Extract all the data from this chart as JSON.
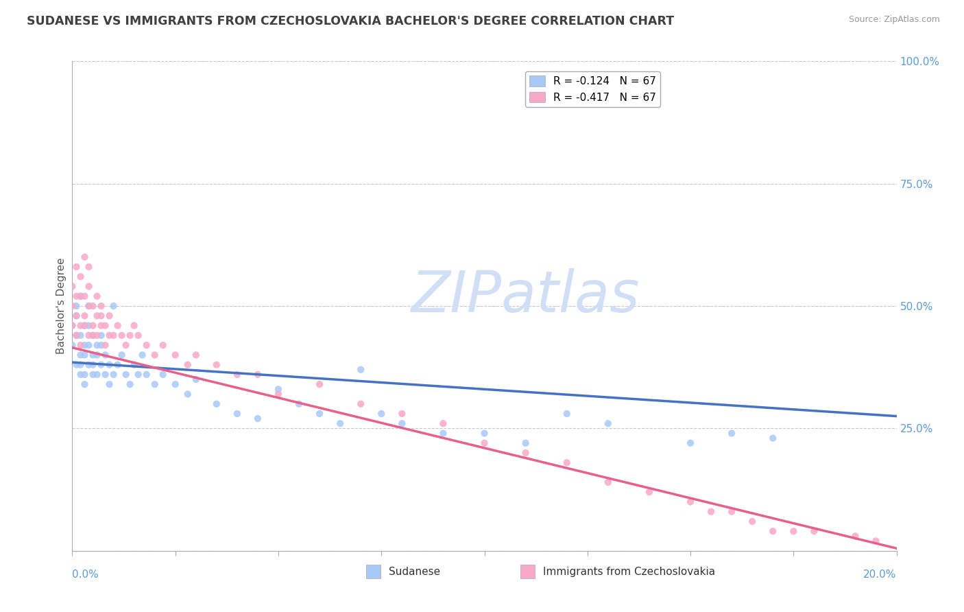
{
  "title": "SUDANESE VS IMMIGRANTS FROM CZECHOSLOVAKIA BACHELOR'S DEGREE CORRELATION CHART",
  "source_text": "Source: ZipAtlas.com",
  "ylabel": "Bachelor's Degree",
  "right_yticks": [
    0.0,
    0.25,
    0.5,
    0.75,
    1.0
  ],
  "right_yticklabels": [
    "",
    "25.0%",
    "50.0%",
    "75.0%",
    "100.0%"
  ],
  "bottom_legend": [
    {
      "label": "Sudanese",
      "color": "#a8c8f8"
    },
    {
      "label": "Immigrants from Czechoslovakia",
      "color": "#f8a8c8"
    }
  ],
  "legend_entries": [
    {
      "label": "R = -0.124   N = 67",
      "color": "#a8c8f8"
    },
    {
      "label": "R = -0.417   N = 67",
      "color": "#f8a8c8"
    }
  ],
  "series1_color": "#a8c8f8",
  "series2_color": "#f8a8c8",
  "line1_color": "#4472c4",
  "line2_color": "#e8608a",
  "watermark": "ZIPatlas",
  "watermark_color": "#d0dff5",
  "background_color": "#ffffff",
  "grid_color": "#c8c8c8",
  "title_color": "#404040",
  "axis_label_color": "#5b9bd5",
  "series1_scatter": {
    "x": [
      0.0,
      0.0,
      0.001,
      0.001,
      0.001,
      0.001,
      0.002,
      0.002,
      0.002,
      0.002,
      0.002,
      0.003,
      0.003,
      0.003,
      0.003,
      0.003,
      0.004,
      0.004,
      0.004,
      0.004,
      0.005,
      0.005,
      0.005,
      0.005,
      0.006,
      0.006,
      0.006,
      0.007,
      0.007,
      0.007,
      0.008,
      0.008,
      0.009,
      0.009,
      0.01,
      0.01,
      0.011,
      0.012,
      0.013,
      0.014,
      0.015,
      0.016,
      0.017,
      0.018,
      0.02,
      0.022,
      0.025,
      0.028,
      0.03,
      0.035,
      0.04,
      0.045,
      0.05,
      0.055,
      0.06,
      0.065,
      0.07,
      0.075,
      0.08,
      0.09,
      0.1,
      0.11,
      0.12,
      0.13,
      0.15,
      0.16,
      0.17
    ],
    "y": [
      0.42,
      0.46,
      0.44,
      0.48,
      0.38,
      0.5,
      0.4,
      0.44,
      0.38,
      0.36,
      0.52,
      0.42,
      0.46,
      0.36,
      0.4,
      0.34,
      0.38,
      0.42,
      0.46,
      0.5,
      0.4,
      0.36,
      0.44,
      0.38,
      0.42,
      0.36,
      0.4,
      0.38,
      0.42,
      0.44,
      0.36,
      0.4,
      0.38,
      0.34,
      0.5,
      0.36,
      0.38,
      0.4,
      0.36,
      0.34,
      0.38,
      0.36,
      0.4,
      0.36,
      0.34,
      0.36,
      0.34,
      0.32,
      0.35,
      0.3,
      0.28,
      0.27,
      0.33,
      0.3,
      0.28,
      0.26,
      0.37,
      0.28,
      0.26,
      0.24,
      0.24,
      0.22,
      0.28,
      0.26,
      0.22,
      0.24,
      0.23
    ]
  },
  "series2_scatter": {
    "x": [
      0.0,
      0.0,
      0.0,
      0.001,
      0.001,
      0.001,
      0.001,
      0.002,
      0.002,
      0.002,
      0.002,
      0.003,
      0.003,
      0.003,
      0.003,
      0.004,
      0.004,
      0.004,
      0.004,
      0.005,
      0.005,
      0.005,
      0.006,
      0.006,
      0.006,
      0.007,
      0.007,
      0.007,
      0.008,
      0.008,
      0.009,
      0.009,
      0.01,
      0.011,
      0.012,
      0.013,
      0.014,
      0.015,
      0.016,
      0.018,
      0.02,
      0.022,
      0.025,
      0.028,
      0.03,
      0.035,
      0.04,
      0.045,
      0.05,
      0.06,
      0.07,
      0.08,
      0.09,
      0.1,
      0.11,
      0.12,
      0.13,
      0.14,
      0.15,
      0.155,
      0.16,
      0.165,
      0.17,
      0.175,
      0.18,
      0.19,
      0.195
    ],
    "y": [
      0.46,
      0.5,
      0.54,
      0.48,
      0.52,
      0.44,
      0.58,
      0.42,
      0.46,
      0.52,
      0.56,
      0.46,
      0.52,
      0.48,
      0.6,
      0.44,
      0.5,
      0.54,
      0.58,
      0.46,
      0.5,
      0.44,
      0.48,
      0.52,
      0.44,
      0.46,
      0.5,
      0.48,
      0.46,
      0.42,
      0.44,
      0.48,
      0.44,
      0.46,
      0.44,
      0.42,
      0.44,
      0.46,
      0.44,
      0.42,
      0.4,
      0.42,
      0.4,
      0.38,
      0.4,
      0.38,
      0.36,
      0.36,
      0.32,
      0.34,
      0.3,
      0.28,
      0.26,
      0.22,
      0.2,
      0.18,
      0.14,
      0.12,
      0.1,
      0.08,
      0.08,
      0.06,
      0.04,
      0.04,
      0.04,
      0.03,
      0.02
    ]
  },
  "line1_x": [
    0.0,
    0.2
  ],
  "line1_y": [
    0.385,
    0.275
  ],
  "line2_x": [
    0.0,
    0.2
  ],
  "line2_y": [
    0.415,
    0.005
  ],
  "xmin": 0.0,
  "xmax": 0.2,
  "ymin": 0.0,
  "ymax": 1.0
}
